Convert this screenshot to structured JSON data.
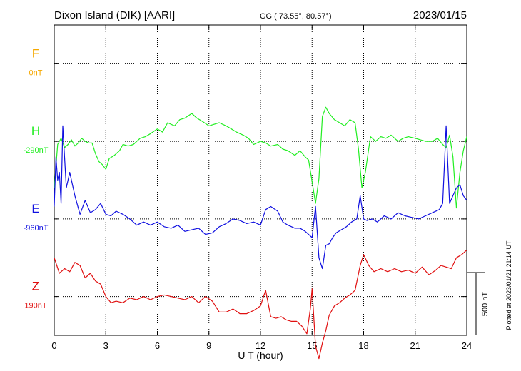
{
  "header": {
    "station": "Dixon Island (DIK)  [AARI]",
    "coords": "GG ( 73.55°,  80.57°)",
    "date": "2023/01/15"
  },
  "side_note": "Plotted at 2023/01/21 21:14 UT",
  "scale_label": "500 nT",
  "colors": {
    "F": "#f5a800",
    "H": "#22ee22",
    "E": "#1010e0",
    "Z": "#e01010",
    "grid": "#000000"
  },
  "chart_data": {
    "type": "line",
    "xlabel": "U T (hour)",
    "xlim": [
      0,
      24
    ],
    "xticks": [
      "0",
      "3",
      "6",
      "9",
      "12",
      "15",
      "18",
      "21",
      "24"
    ],
    "offset_ylim_nT": [
      -250,
      1750
    ],
    "series": [
      {
        "name": "F",
        "baseline_label": "0nT",
        "offset_nT": 1500,
        "x": [],
        "y": []
      },
      {
        "name": "H",
        "baseline_label": "-290nT",
        "offset_nT": 1000,
        "x": [
          0,
          0.2,
          0.4,
          0.6,
          0.8,
          1.0,
          1.2,
          1.4,
          1.6,
          1.8,
          2.0,
          2.2,
          2.4,
          2.6,
          2.8,
          3.0,
          3.2,
          3.5,
          3.8,
          4.0,
          4.3,
          4.6,
          5.0,
          5.3,
          5.6,
          6.0,
          6.3,
          6.6,
          7.0,
          7.3,
          7.6,
          8.0,
          8.3,
          8.6,
          9.0,
          9.3,
          9.6,
          10.0,
          10.3,
          10.6,
          11.0,
          11.3,
          11.6,
          12.0,
          12.3,
          12.6,
          13.0,
          13.3,
          13.6,
          14.0,
          14.3,
          14.6,
          14.8,
          15.0,
          15.2,
          15.4,
          15.6,
          15.8,
          16.0,
          16.3,
          16.6,
          16.9,
          17.2,
          17.5,
          17.7,
          17.9,
          18.1,
          18.4,
          18.7,
          19.0,
          19.3,
          19.6,
          20.0,
          20.3,
          20.6,
          21.0,
          21.3,
          21.6,
          22.0,
          22.3,
          22.6,
          22.8,
          23.0,
          23.2,
          23.4,
          23.6,
          23.8,
          24.0
        ],
        "y": [
          -300,
          -20,
          20,
          -40,
          -20,
          10,
          -30,
          -10,
          20,
          0,
          -10,
          -10,
          -80,
          -130,
          -150,
          -180,
          -110,
          -90,
          -60,
          -20,
          -30,
          -20,
          20,
          30,
          50,
          80,
          60,
          120,
          100,
          140,
          150,
          180,
          150,
          130,
          100,
          110,
          120,
          100,
          80,
          60,
          40,
          20,
          -20,
          0,
          -10,
          -30,
          -20,
          -50,
          -60,
          -90,
          -60,
          -100,
          -120,
          -260,
          -400,
          -240,
          160,
          220,
          180,
          140,
          120,
          100,
          140,
          120,
          -50,
          -300,
          -200,
          30,
          0,
          30,
          20,
          40,
          0,
          20,
          30,
          20,
          10,
          0,
          0,
          20,
          -20,
          -40,
          40,
          -100,
          -430,
          -200,
          -60,
          30
        ]
      },
      {
        "name": "E",
        "baseline_label": "-960nT",
        "offset_nT": 500,
        "x": [
          0,
          0.1,
          0.2,
          0.3,
          0.4,
          0.5,
          0.7,
          0.9,
          1.2,
          1.5,
          1.8,
          2.1,
          2.4,
          2.7,
          3.0,
          3.3,
          3.6,
          4.0,
          4.4,
          4.8,
          5.2,
          5.6,
          6.0,
          6.4,
          6.8,
          7.2,
          7.6,
          8.0,
          8.4,
          8.8,
          9.2,
          9.6,
          10.0,
          10.4,
          10.8,
          11.2,
          11.6,
          12.0,
          12.3,
          12.6,
          13.0,
          13.3,
          13.6,
          14.0,
          14.3,
          14.6,
          14.8,
          15.0,
          15.2,
          15.4,
          15.6,
          15.8,
          16.0,
          16.2,
          16.4,
          16.7,
          17.0,
          17.3,
          17.6,
          17.8,
          18.0,
          18.2,
          18.5,
          18.8,
          19.2,
          19.6,
          20.0,
          20.4,
          20.8,
          21.2,
          21.6,
          22.0,
          22.4,
          22.6,
          22.8,
          23.0,
          23.2,
          23.4,
          23.6,
          23.8,
          24.0
        ],
        "y": [
          80,
          400,
          250,
          300,
          100,
          600,
          200,
          300,
          150,
          30,
          120,
          40,
          60,
          100,
          30,
          20,
          50,
          30,
          0,
          -40,
          -20,
          -40,
          -20,
          -50,
          -60,
          -40,
          -80,
          -70,
          -60,
          -100,
          -90,
          -50,
          -30,
          0,
          -10,
          -30,
          -20,
          -40,
          60,
          80,
          50,
          -20,
          -40,
          -60,
          -60,
          -80,
          -100,
          -120,
          80,
          -250,
          -320,
          -170,
          -160,
          -120,
          -90,
          -70,
          -50,
          -20,
          0,
          150,
          0,
          -10,
          0,
          -20,
          20,
          0,
          40,
          20,
          10,
          0,
          20,
          40,
          60,
          100,
          600,
          100,
          150,
          200,
          220,
          150,
          120
        ]
      },
      {
        "name": "Z",
        "baseline_label": "190nT",
        "offset_nT": 0,
        "x": [
          0,
          0.3,
          0.6,
          0.9,
          1.2,
          1.5,
          1.8,
          2.1,
          2.4,
          2.7,
          3.0,
          3.3,
          3.6,
          4.0,
          4.4,
          4.8,
          5.2,
          5.6,
          6.0,
          6.4,
          6.8,
          7.2,
          7.6,
          8.0,
          8.4,
          8.8,
          9.2,
          9.6,
          10.0,
          10.4,
          10.8,
          11.2,
          11.6,
          12.0,
          12.3,
          12.6,
          12.9,
          13.2,
          13.5,
          13.8,
          14.1,
          14.4,
          14.7,
          14.9,
          15.0,
          15.2,
          15.4,
          15.6,
          15.8,
          16.0,
          16.3,
          16.6,
          16.9,
          17.2,
          17.5,
          17.8,
          18.0,
          18.3,
          18.6,
          19.0,
          19.4,
          19.8,
          20.2,
          20.6,
          21.0,
          21.4,
          21.8,
          22.2,
          22.5,
          22.8,
          23.1,
          23.4,
          23.7,
          24.0
        ],
        "y": [
          250,
          150,
          180,
          160,
          220,
          200,
          120,
          150,
          100,
          80,
          0,
          -40,
          -30,
          -40,
          -10,
          -20,
          0,
          -20,
          0,
          10,
          0,
          -10,
          -20,
          0,
          -40,
          0,
          -30,
          -100,
          -100,
          -80,
          -110,
          -110,
          -90,
          -60,
          40,
          -130,
          -140,
          -130,
          -150,
          -160,
          -160,
          -190,
          -240,
          -80,
          50,
          -320,
          -400,
          -300,
          -220,
          -120,
          -60,
          -40,
          -10,
          10,
          40,
          200,
          270,
          200,
          160,
          180,
          160,
          180,
          160,
          170,
          150,
          190,
          140,
          170,
          200,
          190,
          180,
          250,
          270,
          300
        ]
      }
    ]
  }
}
